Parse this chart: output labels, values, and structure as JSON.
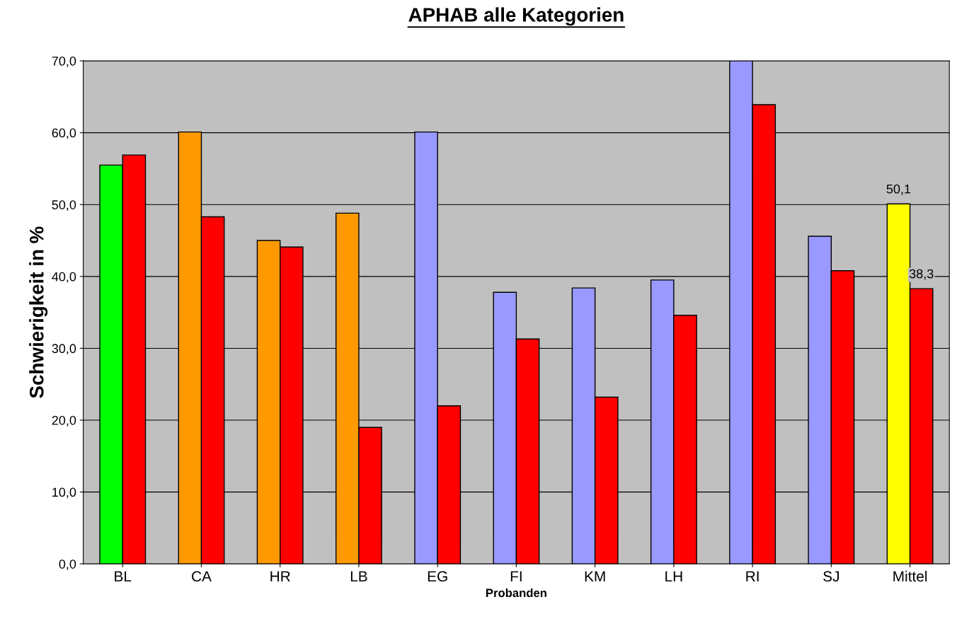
{
  "chart_data": {
    "type": "bar",
    "title": "APHAB alle Kategorien",
    "xlabel": "Probanden",
    "ylabel": "Schwierigkeit in %",
    "categories": [
      "BL",
      "CA",
      "HR",
      "LB",
      "EG",
      "FI",
      "KM",
      "LH",
      "RI",
      "SJ",
      "Mittel"
    ],
    "series": [
      {
        "colors": [
          "#00ff00",
          "#ff9900",
          "#ff9900",
          "#ff9900",
          "#9999ff",
          "#9999ff",
          "#9999ff",
          "#9999ff",
          "#9999ff",
          "#9999ff",
          "#ffff00"
        ],
        "values": [
          55.5,
          60.1,
          45.0,
          48.8,
          60.1,
          37.8,
          38.4,
          39.5,
          70.0,
          45.6,
          50.1
        ],
        "value_labels": [
          null,
          null,
          null,
          null,
          null,
          null,
          null,
          null,
          null,
          null,
          "50,1"
        ]
      },
      {
        "color": "#ff0000",
        "values": [
          56.9,
          48.3,
          44.1,
          19.0,
          22.0,
          31.3,
          23.2,
          34.6,
          63.9,
          40.8,
          38.3
        ],
        "value_labels": [
          null,
          null,
          null,
          null,
          null,
          null,
          null,
          null,
          null,
          null,
          "38,3"
        ]
      }
    ],
    "ylim": [
      0,
      70
    ],
    "yticks": [
      {
        "value": 0,
        "label": "0,0"
      },
      {
        "value": 10,
        "label": "10,0"
      },
      {
        "value": 20,
        "label": "20,0"
      },
      {
        "value": 30,
        "label": "30,0"
      },
      {
        "value": 40,
        "label": "40,0"
      },
      {
        "value": 50,
        "label": "50,0"
      },
      {
        "value": 60,
        "label": "60,0"
      },
      {
        "value": 70,
        "label": "70,0"
      }
    ],
    "grid": "y",
    "legend": false
  }
}
